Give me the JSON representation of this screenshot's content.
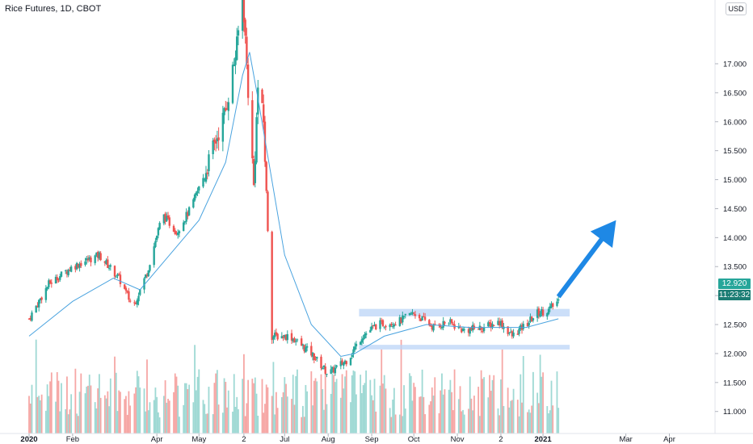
{
  "header": {
    "title": "Rice Futures, 1D, CBOT",
    "currency": "USD"
  },
  "price_scale": {
    "last_price": "12.920",
    "countdown": "11:23:32",
    "colors": {
      "up": "#26a69a",
      "down": "#ef5350",
      "ma": "#4aa3df",
      "box": "#bbd4f7",
      "arrow": "#1e88e5",
      "up_volume": "#9fd9d4",
      "down_volume": "#f6a7a5"
    }
  },
  "chart_data": {
    "type": "candlestick",
    "title": "Rice Futures, 1D, CBOT",
    "ylabel": "USD",
    "ylim": [
      10.62,
      18.1
    ],
    "y_ticks": [
      "17.000",
      "16.500",
      "16.000",
      "15.500",
      "15.000",
      "14.500",
      "14.000",
      "13.500",
      "13.000",
      "12.500",
      "12.000",
      "11.500",
      "11.000"
    ],
    "x_ticks": [
      "2020",
      "Feb",
      "Apr",
      "May",
      "2",
      "Jul",
      "Aug",
      "Sep",
      "Oct",
      "Nov",
      "2",
      "2021",
      "Mar",
      "Apr"
    ],
    "price_path": [
      [
        "2020-01-01",
        12.6
      ],
      [
        "2020-01-15",
        13.2
      ],
      [
        "2020-02-01",
        13.5
      ],
      [
        "2020-02-20",
        13.7
      ],
      [
        "2020-03-05",
        13.3
      ],
      [
        "2020-03-15",
        12.8
      ],
      [
        "2020-03-25",
        13.4
      ],
      [
        "2020-04-05",
        14.4
      ],
      [
        "2020-04-15",
        14.1
      ],
      [
        "2020-04-25",
        14.5
      ],
      [
        "2020-05-05",
        15.1
      ],
      [
        "2020-05-12",
        15.6
      ],
      [
        "2020-05-20",
        16.2
      ],
      [
        "2020-05-28",
        17.3
      ],
      [
        "2020-06-01",
        18.3
      ],
      [
        "2020-06-06",
        16.1
      ],
      [
        "2020-06-09",
        14.9
      ],
      [
        "2020-06-12",
        16.6
      ],
      [
        "2020-06-16",
        16.0
      ],
      [
        "2020-06-22",
        12.3
      ],
      [
        "2020-07-05",
        12.3
      ],
      [
        "2020-07-20",
        12.0
      ],
      [
        "2020-08-01",
        11.65
      ],
      [
        "2020-08-15",
        11.9
      ],
      [
        "2020-08-25",
        12.3
      ],
      [
        "2020-09-05",
        12.5
      ],
      [
        "2020-09-20",
        12.55
      ],
      [
        "2020-10-01",
        12.7
      ],
      [
        "2020-10-15",
        12.45
      ],
      [
        "2020-10-25",
        12.55
      ],
      [
        "2020-11-05",
        12.4
      ],
      [
        "2020-11-20",
        12.45
      ],
      [
        "2020-12-01",
        12.55
      ],
      [
        "2020-12-10",
        12.3
      ],
      [
        "2020-12-20",
        12.5
      ],
      [
        "2020-12-28",
        12.7
      ],
      [
        "2021-01-05",
        12.75
      ],
      [
        "2021-01-12",
        12.92
      ]
    ],
    "moving_average": [
      [
        "2020-01-01",
        12.3
      ],
      [
        "2020-02-01",
        12.9
      ],
      [
        "2020-03-01",
        13.3
      ],
      [
        "2020-03-20",
        13.1
      ],
      [
        "2020-04-10",
        13.7
      ],
      [
        "2020-05-01",
        14.3
      ],
      [
        "2020-05-20",
        15.3
      ],
      [
        "2020-06-01",
        16.8
      ],
      [
        "2020-06-06",
        17.2
      ],
      [
        "2020-06-12",
        16.4
      ],
      [
        "2020-07-01",
        13.7
      ],
      [
        "2020-07-20",
        12.5
      ],
      [
        "2020-08-10",
        11.95
      ],
      [
        "2020-08-20",
        12.0
      ],
      [
        "2020-09-10",
        12.3
      ],
      [
        "2020-10-10",
        12.5
      ],
      [
        "2020-11-10",
        12.45
      ],
      [
        "2020-12-20",
        12.45
      ],
      [
        "2021-01-12",
        12.6
      ]
    ],
    "resistance_zone": [
      12.64,
      12.77
    ],
    "support_zone": [
      12.07,
      12.15
    ],
    "projection_arrow": {
      "from": [
        "2021-01-12",
        12.98
      ],
      "to": [
        "2021-02-22",
        14.3
      ]
    },
    "volume": {
      "pattern": "daily bars, mixed up/down"
    },
    "grid": false,
    "legend": "none"
  }
}
